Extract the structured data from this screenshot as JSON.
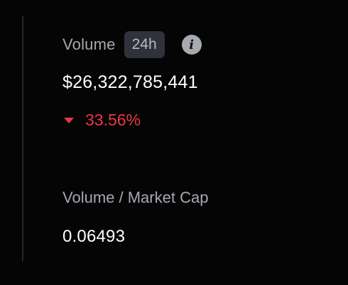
{
  "volume": {
    "label": "Volume",
    "period_badge": "24h",
    "info_icon": "info-icon",
    "value": "$26,322,785,441",
    "change_direction": "down",
    "change_percent": "33.56%"
  },
  "volume_market_cap": {
    "label": "Volume / Market Cap",
    "value": "0.06493"
  },
  "colors": {
    "background": "#050505",
    "label": "#a7a9b1",
    "value": "#ffffff",
    "negative": "#ea3943",
    "badge_bg": "#2f323a"
  }
}
